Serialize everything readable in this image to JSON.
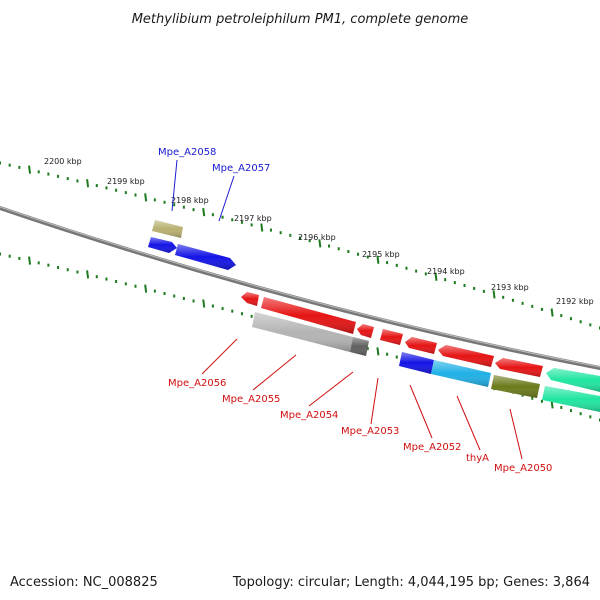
{
  "title": "Methylibium petroleiphilum PM1, complete genome",
  "footer": {
    "accession": "Accession: NC_008825",
    "summary": "Topology: circular; Length: 4,044,195 bp; Genes: 3,864"
  },
  "colors": {
    "backbone": "#808080",
    "tick": "#1e7a1e",
    "label_forward": "#1a1ad0",
    "label_reverse": "#d01010"
  },
  "scale_labels": [
    "2200 kbp",
    "2199 kbp",
    "2198 kbp",
    "2197 kbp",
    "2196 kbp",
    "2195 kbp",
    "2194 kbp",
    "2193 kbp",
    "2192 kbp"
  ],
  "forward_genes": [
    {
      "name": "Mpe_A2058",
      "color": "#b8b070"
    },
    {
      "name": "Mpe_A2057",
      "color": "#1414e6"
    }
  ],
  "forward_unlabeled": [
    {
      "color": "#1414e6"
    }
  ],
  "reverse_genes": [
    {
      "name": "Mpe_A2056",
      "color": "#e61414"
    },
    {
      "name": "Mpe_A2055",
      "color": "#b4b4b4"
    },
    {
      "name": "Mpe_A2054",
      "color": "#606060"
    },
    {
      "name": "Mpe_A2053",
      "color": "#e61414"
    },
    {
      "name": "Mpe_A2052",
      "color": "#1414e6"
    },
    {
      "name": "thyA",
      "color": "#20b0e6"
    },
    {
      "name": "Mpe_A2050",
      "color": "#6b7a1a"
    }
  ],
  "reverse_unlabeled": [
    {
      "color": "#e61414"
    },
    {
      "color": "#e61414"
    },
    {
      "color": "#e61414"
    },
    {
      "color": "#e61414"
    },
    {
      "color": "#e61414"
    },
    {
      "color": "#e61414"
    },
    {
      "color": "#20e6a0"
    }
  ]
}
